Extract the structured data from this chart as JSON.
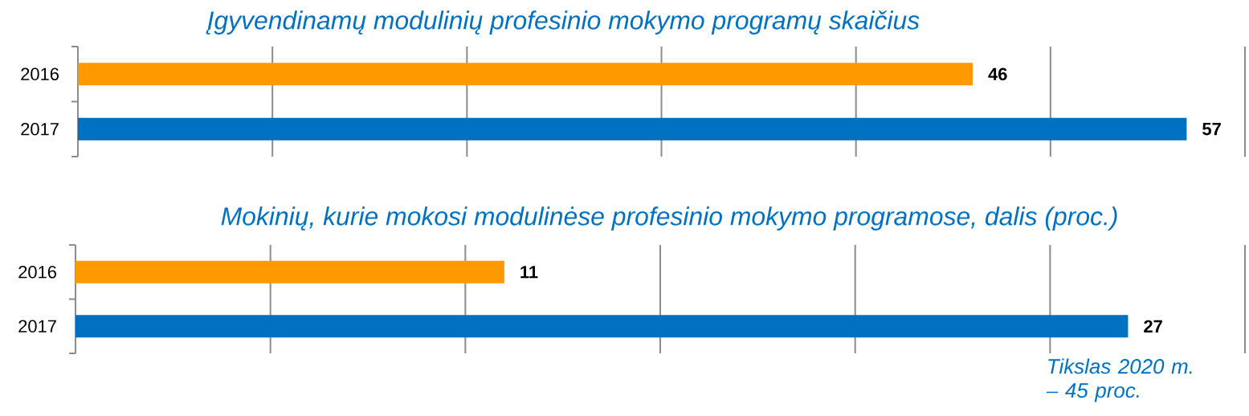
{
  "chart_data": [
    {
      "type": "bar",
      "orientation": "horizontal",
      "title": "Įgyvendinamų modulinių profesinio mokymo programų skaičius",
      "categories": [
        "2016",
        "2017"
      ],
      "values": [
        46,
        57
      ],
      "colors": [
        "#ff9900",
        "#0070c0"
      ],
      "data_labels": true,
      "xlim": [
        0,
        60
      ],
      "xticks": [
        {
          "value": 0,
          "label": null
        },
        {
          "value": 10,
          "label": null
        },
        {
          "value": 20,
          "label": null
        },
        {
          "value": 30,
          "label": null
        },
        {
          "value": 40,
          "label": null
        },
        {
          "value": 50,
          "label": null
        },
        {
          "value": 60,
          "label": null
        }
      ],
      "grid": "x"
    },
    {
      "type": "bar",
      "orientation": "horizontal",
      "title": "Mokinių, kurie mokosi modulinėse profesinio mokymo programose, dalis (proc.)",
      "categories": [
        "2016",
        "2017"
      ],
      "values": [
        11,
        27
      ],
      "colors": [
        "#ff9900",
        "#0070c0"
      ],
      "data_labels": true,
      "xlim": [
        0,
        30
      ],
      "xticks": [
        {
          "value": 0,
          "label": null
        },
        {
          "value": 5,
          "label": null
        },
        {
          "value": 10,
          "label": null
        },
        {
          "value": 15,
          "label": null
        },
        {
          "value": 20,
          "label": null
        },
        {
          "value": 25,
          "label": null
        },
        {
          "value": 30,
          "label": null
        }
      ],
      "grid": "x",
      "annotations": [
        "Tikslas 2020 m. – 45 proc."
      ]
    }
  ]
}
